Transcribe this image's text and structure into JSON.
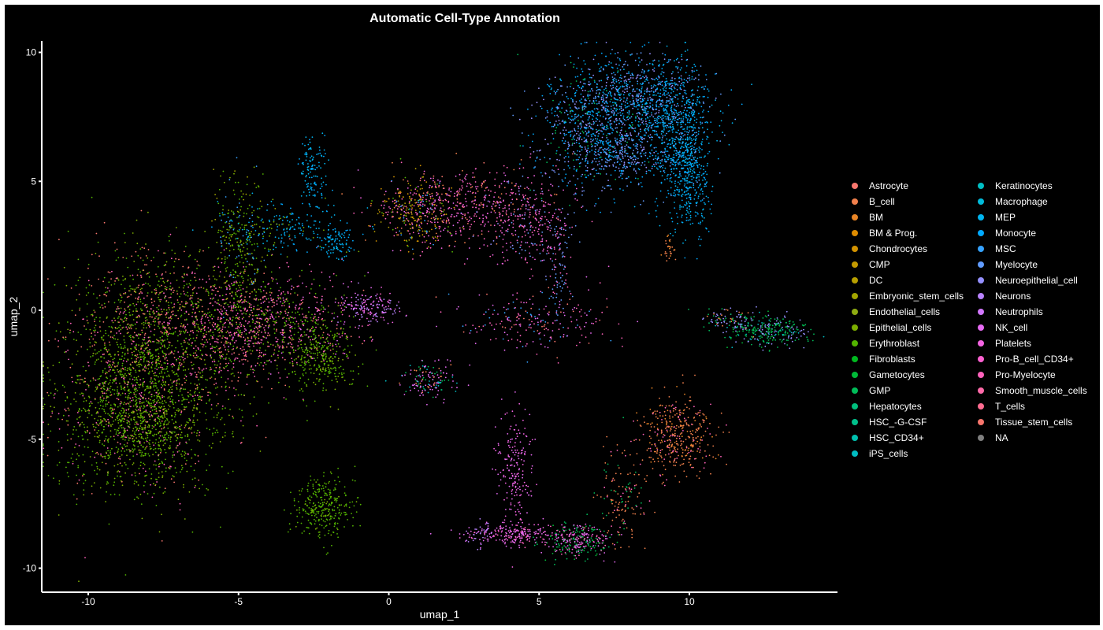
{
  "chart_data": {
    "type": "scatter",
    "title": "Automatic Cell-Type Annotation",
    "xlabel": "umap_1",
    "ylabel": "umap_2",
    "xlim": [
      -12,
      14.5
    ],
    "ylim": [
      -11,
      10.5
    ],
    "xticks": [
      -10,
      -5,
      0,
      5,
      10
    ],
    "yticks": [
      -10,
      -5,
      0,
      5,
      10
    ],
    "grid": false,
    "background": "#000000",
    "legend_position": "right",
    "categories": [
      {
        "name": "Astrocyte",
        "color": "#F8766D"
      },
      {
        "name": "B_cell",
        "color": "#F1804C"
      },
      {
        "name": "BM",
        "color": "#E88526"
      },
      {
        "name": "BM & Prog.",
        "color": "#DE8C00"
      },
      {
        "name": "Chondrocytes",
        "color": "#D29200"
      },
      {
        "name": "CMP",
        "color": "#C49A00"
      },
      {
        "name": "DC",
        "color": "#B79F00"
      },
      {
        "name": "Embryonic_stem_cells",
        "color": "#A3A500"
      },
      {
        "name": "Endothelial_cells",
        "color": "#8EAB12"
      },
      {
        "name": "Epithelial_cells",
        "color": "#7CAE00"
      },
      {
        "name": "Erythroblast",
        "color": "#53B400"
      },
      {
        "name": "Fibroblasts",
        "color": "#00B81F"
      },
      {
        "name": "Gametocytes",
        "color": "#00BA38"
      },
      {
        "name": "GMP",
        "color": "#00BC59"
      },
      {
        "name": "Hepatocytes",
        "color": "#00BF7D"
      },
      {
        "name": "HSC_-G-CSF",
        "color": "#00C08B"
      },
      {
        "name": "HSC_CD34+",
        "color": "#00C0AF"
      },
      {
        "name": "iPS_cells",
        "color": "#00BCC2"
      },
      {
        "name": "Keratinocytes",
        "color": "#00BFC4"
      },
      {
        "name": "Macrophage",
        "color": "#00BBDB"
      },
      {
        "name": "MEP",
        "color": "#00B4EF"
      },
      {
        "name": "Monocyte",
        "color": "#00A9FF"
      },
      {
        "name": "MSC",
        "color": "#35A2FF"
      },
      {
        "name": "Myelocyte",
        "color": "#619CFF"
      },
      {
        "name": "Neuroepithelial_cell",
        "color": "#9590FF"
      },
      {
        "name": "Neurons",
        "color": "#B983FF"
      },
      {
        "name": "Neutrophils",
        "color": "#D277FF"
      },
      {
        "name": "NK_cell",
        "color": "#E76BF3"
      },
      {
        "name": "Platelets",
        "color": "#F564E3"
      },
      {
        "name": "Pro-B_cell_CD34+",
        "color": "#FD61D1"
      },
      {
        "name": "Pro-Myelocyte",
        "color": "#FF62BC"
      },
      {
        "name": "Smooth_muscle_cells",
        "color": "#FF6AA9"
      },
      {
        "name": "T_cells",
        "color": "#FF6C91"
      },
      {
        "name": "Tissue_stem_cells",
        "color": "#F8766D"
      },
      {
        "name": "NA",
        "color": "#7F7F7F"
      }
    ],
    "clusters": [
      {
        "cx": -8.3,
        "cy": -3.8,
        "sx": 1.3,
        "sy": 1.6,
        "n": 1800,
        "mix": [
          [
            10,
            5
          ],
          [
            9,
            3
          ],
          [
            33,
            1
          ],
          [
            30,
            1
          ]
        ]
      },
      {
        "cx": -8.0,
        "cy": -0.5,
        "sx": 1.3,
        "sy": 1.5,
        "n": 900,
        "mix": [
          [
            10,
            3
          ],
          [
            9,
            2
          ],
          [
            33,
            2
          ],
          [
            30,
            1
          ],
          [
            0,
            1
          ]
        ]
      },
      {
        "cx": -5.2,
        "cy": -0.6,
        "sx": 1.2,
        "sy": 1.2,
        "n": 700,
        "mix": [
          [
            30,
            3
          ],
          [
            33,
            2
          ],
          [
            10,
            2
          ],
          [
            9,
            1
          ]
        ]
      },
      {
        "cx": -3.3,
        "cy": -0.5,
        "sx": 1.3,
        "sy": 0.9,
        "n": 500,
        "mix": [
          [
            30,
            3
          ],
          [
            10,
            2
          ],
          [
            27,
            1
          ],
          [
            33,
            1
          ]
        ]
      },
      {
        "cx": -2.3,
        "cy": -1.8,
        "sx": 0.6,
        "sy": 0.7,
        "n": 300,
        "mix": [
          [
            10,
            4
          ],
          [
            9,
            2
          ]
        ]
      },
      {
        "cx": -4.9,
        "cy": 2.7,
        "sx": 0.5,
        "sy": 1.2,
        "n": 300,
        "mix": [
          [
            10,
            2
          ],
          [
            9,
            2
          ],
          [
            22,
            1
          ],
          [
            7,
            1
          ]
        ]
      },
      {
        "cx": -3.3,
        "cy": 3.2,
        "sx": 1.1,
        "sy": 0.5,
        "n": 200,
        "mix": [
          [
            20,
            3
          ],
          [
            21,
            2
          ],
          [
            9,
            1
          ]
        ]
      },
      {
        "cx": -2.5,
        "cy": 5.5,
        "sx": 0.25,
        "sy": 0.7,
        "n": 120,
        "mix": [
          [
            20,
            3
          ],
          [
            21,
            2
          ]
        ]
      },
      {
        "cx": -1.7,
        "cy": 2.6,
        "sx": 0.3,
        "sy": 0.3,
        "n": 80,
        "mix": [
          [
            20,
            3
          ],
          [
            21,
            2
          ]
        ]
      },
      {
        "cx": -0.6,
        "cy": 0.1,
        "sx": 0.55,
        "sy": 0.3,
        "n": 160,
        "mix": [
          [
            25,
            3
          ],
          [
            28,
            2
          ],
          [
            27,
            2
          ]
        ]
      },
      {
        "cx": 0.9,
        "cy": 3.8,
        "sx": 0.6,
        "sy": 0.7,
        "n": 300,
        "mix": [
          [
            6,
            2
          ],
          [
            4,
            2
          ],
          [
            30,
            2
          ],
          [
            22,
            1
          ],
          [
            10,
            1
          ]
        ]
      },
      {
        "cx": 2.8,
        "cy": 4.1,
        "sx": 1.4,
        "sy": 0.7,
        "n": 500,
        "mix": [
          [
            30,
            3
          ],
          [
            28,
            2
          ],
          [
            33,
            1
          ],
          [
            1,
            1
          ],
          [
            27,
            1
          ]
        ]
      },
      {
        "cx": 4.7,
        "cy": 3.3,
        "sx": 0.8,
        "sy": 1.0,
        "n": 250,
        "mix": [
          [
            30,
            2
          ],
          [
            28,
            2
          ],
          [
            23,
            1
          ],
          [
            24,
            1
          ]
        ]
      },
      {
        "cx": 4.8,
        "cy": -0.4,
        "sx": 1.3,
        "sy": 0.6,
        "n": 220,
        "mix": [
          [
            30,
            2
          ],
          [
            27,
            2
          ],
          [
            22,
            1
          ],
          [
            33,
            1
          ]
        ]
      },
      {
        "cx": 5.6,
        "cy": 1.8,
        "sx": 0.25,
        "sy": 1.0,
        "n": 80,
        "mix": [
          [
            23,
            2
          ],
          [
            30,
            1
          ]
        ]
      },
      {
        "cx": 6.6,
        "cy": 7.0,
        "sx": 0.9,
        "sy": 1.2,
        "n": 700,
        "mix": [
          [
            21,
            3
          ],
          [
            23,
            2
          ],
          [
            24,
            2
          ],
          [
            13,
            1
          ]
        ]
      },
      {
        "cx": 8.3,
        "cy": 8.2,
        "sx": 1.1,
        "sy": 0.9,
        "n": 800,
        "mix": [
          [
            21,
            3
          ],
          [
            23,
            2
          ],
          [
            24,
            2
          ],
          [
            20,
            2
          ]
        ]
      },
      {
        "cx": 9.6,
        "cy": 6.8,
        "sx": 0.6,
        "sy": 1.2,
        "n": 600,
        "mix": [
          [
            21,
            3
          ],
          [
            20,
            2
          ],
          [
            23,
            1
          ]
        ]
      },
      {
        "cx": 10.0,
        "cy": 4.9,
        "sx": 0.35,
        "sy": 1.0,
        "n": 300,
        "mix": [
          [
            21,
            3
          ],
          [
            20,
            2
          ]
        ]
      },
      {
        "cx": 7.8,
        "cy": 6.0,
        "sx": 0.6,
        "sy": 0.5,
        "n": 200,
        "mix": [
          [
            23,
            3
          ],
          [
            24,
            2
          ],
          [
            21,
            1
          ]
        ]
      },
      {
        "cx": 9.3,
        "cy": 2.4,
        "sx": 0.1,
        "sy": 0.3,
        "n": 30,
        "mix": [
          [
            1,
            2
          ],
          [
            2,
            1
          ]
        ]
      },
      {
        "cx": 12.6,
        "cy": -0.8,
        "sx": 0.7,
        "sy": 0.3,
        "n": 300,
        "mix": [
          [
            13,
            3
          ],
          [
            24,
            2
          ],
          [
            12,
            1
          ],
          [
            17,
            1
          ]
        ]
      },
      {
        "cx": 11.2,
        "cy": -0.3,
        "sx": 0.45,
        "sy": 0.2,
        "n": 80,
        "mix": [
          [
            24,
            2
          ],
          [
            1,
            1
          ],
          [
            13,
            1
          ]
        ]
      },
      {
        "cx": 1.4,
        "cy": -2.7,
        "sx": 0.5,
        "sy": 0.35,
        "n": 150,
        "mix": [
          [
            27,
            3
          ],
          [
            13,
            1
          ],
          [
            18,
            1
          ],
          [
            1,
            1
          ]
        ]
      },
      {
        "cx": -2.2,
        "cy": -7.6,
        "sx": 0.5,
        "sy": 0.6,
        "n": 300,
        "mix": [
          [
            10,
            5
          ],
          [
            9,
            1
          ]
        ]
      },
      {
        "cx": 4.2,
        "cy": -6.3,
        "sx": 0.3,
        "sy": 1.2,
        "n": 200,
        "mix": [
          [
            27,
            3
          ],
          [
            28,
            2
          ]
        ]
      },
      {
        "cx": 4.2,
        "cy": -8.7,
        "sx": 0.8,
        "sy": 0.2,
        "n": 200,
        "mix": [
          [
            27,
            3
          ],
          [
            28,
            2
          ],
          [
            30,
            1
          ]
        ]
      },
      {
        "cx": 6.3,
        "cy": -8.9,
        "sx": 0.6,
        "sy": 0.35,
        "n": 300,
        "mix": [
          [
            13,
            2
          ],
          [
            27,
            2
          ],
          [
            28,
            1
          ],
          [
            30,
            1
          ],
          [
            12,
            1
          ]
        ]
      },
      {
        "cx": 7.8,
        "cy": -7.2,
        "sx": 0.4,
        "sy": 0.9,
        "n": 150,
        "mix": [
          [
            1,
            3
          ],
          [
            30,
            1
          ],
          [
            13,
            1
          ]
        ]
      },
      {
        "cx": 9.6,
        "cy": -4.8,
        "sx": 0.6,
        "sy": 0.8,
        "n": 400,
        "mix": [
          [
            1,
            4
          ],
          [
            2,
            1
          ],
          [
            30,
            1
          ]
        ]
      },
      {
        "cx": 3.1,
        "cy": -8.7,
        "sx": 0.2,
        "sy": 0.2,
        "n": 40,
        "mix": [
          [
            25,
            2
          ],
          [
            27,
            1
          ]
        ]
      }
    ]
  }
}
